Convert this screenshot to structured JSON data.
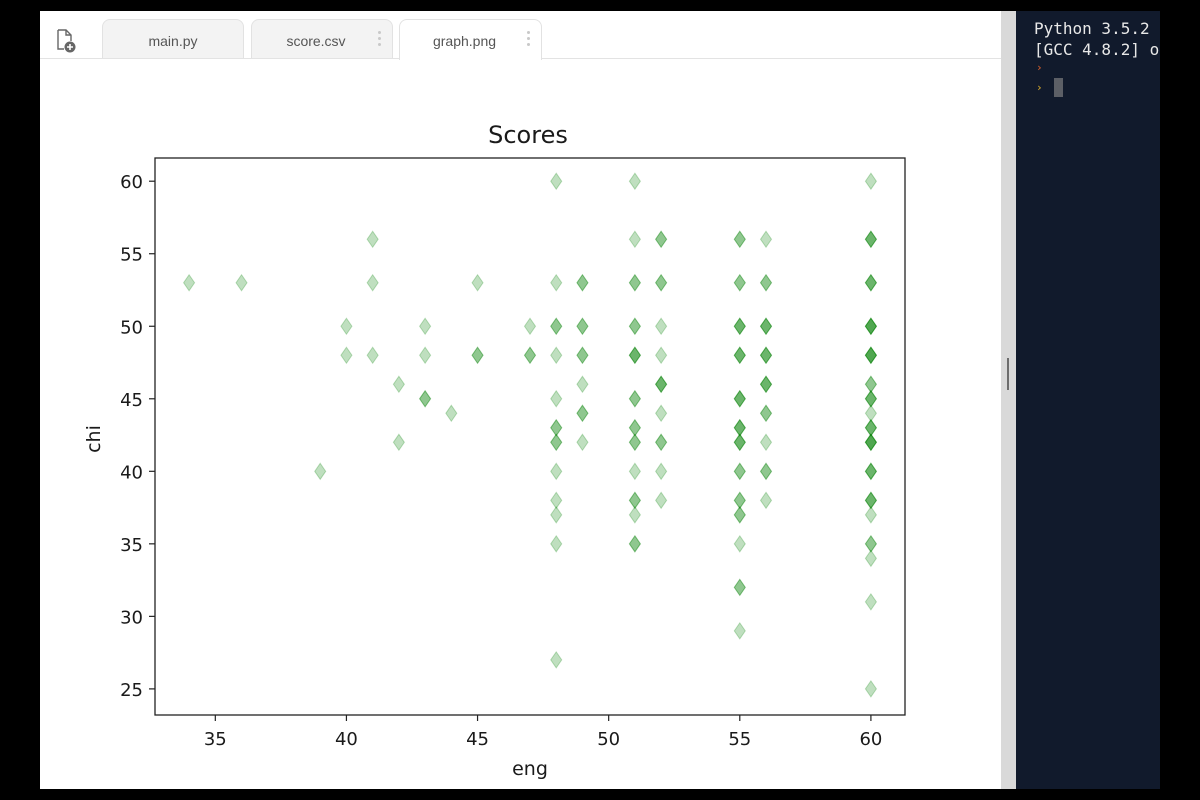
{
  "tabs": [
    {
      "label": "main.py",
      "active": false,
      "menu": false
    },
    {
      "label": "score.csv",
      "active": false,
      "menu": true
    },
    {
      "label": "graph.png",
      "active": true,
      "menu": true
    }
  ],
  "console": {
    "lines": [
      "Python 3.5.2",
      "[GCC 4.8.2] o"
    ],
    "prompt_symbol": "›",
    "prompt_colors": [
      "#e0632c",
      "#e0b12c"
    ]
  },
  "icons": {
    "new_file": "new-file-icon",
    "tab_menu": "vertical-dots-icon"
  },
  "chart_data": {
    "type": "scatter",
    "title": "Scores",
    "xlabel": "eng",
    "ylabel": "chi",
    "xlim": [
      32.7,
      61.3
    ],
    "ylim": [
      23.2,
      61.6
    ],
    "xticks": [
      35,
      40,
      45,
      50,
      55,
      60
    ],
    "yticks": [
      25,
      30,
      35,
      40,
      45,
      50,
      55,
      60
    ],
    "grid": false,
    "legend": "none",
    "marker": "thin_diamond",
    "color": "#008000",
    "alpha": 0.25,
    "points": [
      [
        34,
        53
      ],
      [
        36,
        53
      ],
      [
        39,
        40
      ],
      [
        40,
        50
      ],
      [
        40,
        48
      ],
      [
        41,
        56
      ],
      [
        41,
        53
      ],
      [
        41,
        48
      ],
      [
        42,
        46
      ],
      [
        42,
        42
      ],
      [
        43,
        50
      ],
      [
        43,
        48
      ],
      [
        43,
        45
      ],
      [
        43,
        45
      ],
      [
        44,
        44
      ],
      [
        45,
        53
      ],
      [
        45,
        48
      ],
      [
        45,
        48
      ],
      [
        47,
        50
      ],
      [
        47,
        48
      ],
      [
        47,
        48
      ],
      [
        48,
        60
      ],
      [
        48,
        53
      ],
      [
        48,
        50
      ],
      [
        48,
        50
      ],
      [
        48,
        48
      ],
      [
        48,
        45
      ],
      [
        48,
        43
      ],
      [
        48,
        43
      ],
      [
        48,
        42
      ],
      [
        48,
        42
      ],
      [
        48,
        40
      ],
      [
        48,
        38
      ],
      [
        48,
        37
      ],
      [
        48,
        35
      ],
      [
        48,
        27
      ],
      [
        49,
        53
      ],
      [
        49,
        53
      ],
      [
        49,
        50
      ],
      [
        49,
        50
      ],
      [
        49,
        48
      ],
      [
        49,
        48
      ],
      [
        49,
        46
      ],
      [
        49,
        44
      ],
      [
        49,
        44
      ],
      [
        49,
        42
      ],
      [
        51,
        60
      ],
      [
        51,
        56
      ],
      [
        51,
        53
      ],
      [
        51,
        53
      ],
      [
        51,
        50
      ],
      [
        51,
        50
      ],
      [
        51,
        48
      ],
      [
        51,
        48
      ],
      [
        51,
        48
      ],
      [
        51,
        45
      ],
      [
        51,
        45
      ],
      [
        51,
        43
      ],
      [
        51,
        43
      ],
      [
        51,
        42
      ],
      [
        51,
        42
      ],
      [
        51,
        40
      ],
      [
        51,
        38
      ],
      [
        51,
        38
      ],
      [
        51,
        37
      ],
      [
        51,
        35
      ],
      [
        51,
        35
      ],
      [
        52,
        56
      ],
      [
        52,
        56
      ],
      [
        52,
        53
      ],
      [
        52,
        53
      ],
      [
        52,
        50
      ],
      [
        52,
        48
      ],
      [
        52,
        46
      ],
      [
        52,
        46
      ],
      [
        52,
        46
      ],
      [
        52,
        44
      ],
      [
        52,
        42
      ],
      [
        52,
        42
      ],
      [
        52,
        40
      ],
      [
        52,
        38
      ],
      [
        55,
        56
      ],
      [
        55,
        56
      ],
      [
        55,
        53
      ],
      [
        55,
        53
      ],
      [
        55,
        50
      ],
      [
        55,
        50
      ],
      [
        55,
        50
      ],
      [
        55,
        48
      ],
      [
        55,
        48
      ],
      [
        55,
        48
      ],
      [
        55,
        45
      ],
      [
        55,
        45
      ],
      [
        55,
        45
      ],
      [
        55,
        43
      ],
      [
        55,
        43
      ],
      [
        55,
        43
      ],
      [
        55,
        42
      ],
      [
        55,
        42
      ],
      [
        55,
        42
      ],
      [
        55,
        40
      ],
      [
        55,
        40
      ],
      [
        55,
        38
      ],
      [
        55,
        38
      ],
      [
        55,
        37
      ],
      [
        55,
        37
      ],
      [
        55,
        35
      ],
      [
        55,
        32
      ],
      [
        55,
        32
      ],
      [
        55,
        29
      ],
      [
        56,
        56
      ],
      [
        56,
        53
      ],
      [
        56,
        53
      ],
      [
        56,
        50
      ],
      [
        56,
        50
      ],
      [
        56,
        50
      ],
      [
        56,
        48
      ],
      [
        56,
        48
      ],
      [
        56,
        48
      ],
      [
        56,
        46
      ],
      [
        56,
        46
      ],
      [
        56,
        46
      ],
      [
        56,
        44
      ],
      [
        56,
        44
      ],
      [
        56,
        42
      ],
      [
        56,
        40
      ],
      [
        56,
        40
      ],
      [
        56,
        38
      ],
      [
        60,
        60
      ],
      [
        60,
        56
      ],
      [
        60,
        56
      ],
      [
        60,
        56
      ],
      [
        60,
        53
      ],
      [
        60,
        53
      ],
      [
        60,
        53
      ],
      [
        60,
        50
      ],
      [
        60,
        50
      ],
      [
        60,
        50
      ],
      [
        60,
        50
      ],
      [
        60,
        48
      ],
      [
        60,
        48
      ],
      [
        60,
        48
      ],
      [
        60,
        48
      ],
      [
        60,
        46
      ],
      [
        60,
        46
      ],
      [
        60,
        45
      ],
      [
        60,
        45
      ],
      [
        60,
        45
      ],
      [
        60,
        44
      ],
      [
        60,
        43
      ],
      [
        60,
        43
      ],
      [
        60,
        43
      ],
      [
        60,
        42
      ],
      [
        60,
        42
      ],
      [
        60,
        42
      ],
      [
        60,
        42
      ],
      [
        60,
        40
      ],
      [
        60,
        40
      ],
      [
        60,
        40
      ],
      [
        60,
        38
      ],
      [
        60,
        38
      ],
      [
        60,
        38
      ],
      [
        60,
        37
      ],
      [
        60,
        35
      ],
      [
        60,
        35
      ],
      [
        60,
        34
      ],
      [
        60,
        31
      ],
      [
        60,
        25
      ]
    ]
  }
}
